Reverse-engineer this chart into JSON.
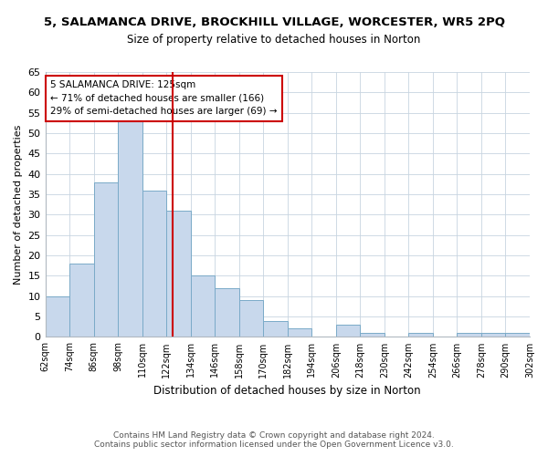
{
  "title": "5, SALAMANCA DRIVE, BROCKHILL VILLAGE, WORCESTER, WR5 2PQ",
  "subtitle": "Size of property relative to detached houses in Norton",
  "xlabel": "Distribution of detached houses by size in Norton",
  "ylabel": "Number of detached properties",
  "bar_color": "#c8d8ec",
  "bar_edge_color": "#7aaac8",
  "reference_line_x": 125,
  "reference_line_color": "#cc0000",
  "bin_edges": [
    62,
    74,
    86,
    98,
    110,
    122,
    134,
    146,
    158,
    170,
    182,
    194,
    206,
    218,
    230,
    242,
    254,
    266,
    278,
    290,
    302
  ],
  "bar_heights": [
    10,
    18,
    38,
    53,
    36,
    31,
    15,
    12,
    9,
    4,
    2,
    0,
    3,
    1,
    0,
    1,
    0,
    1,
    1,
    1
  ],
  "annotation_line1": "5 SALAMANCA DRIVE: 125sqm",
  "annotation_line2": "← 71% of detached houses are smaller (166)",
  "annotation_line3": "29% of semi-detached houses are larger (69) →",
  "ylim": [
    0,
    65
  ],
  "yticks": [
    0,
    5,
    10,
    15,
    20,
    25,
    30,
    35,
    40,
    45,
    50,
    55,
    60,
    65
  ],
  "footer_text": "Contains HM Land Registry data © Crown copyright and database right 2024.\nContains public sector information licensed under the Open Government Licence v3.0.",
  "background_color": "#ffffff",
  "grid_color": "#c8d4e0"
}
